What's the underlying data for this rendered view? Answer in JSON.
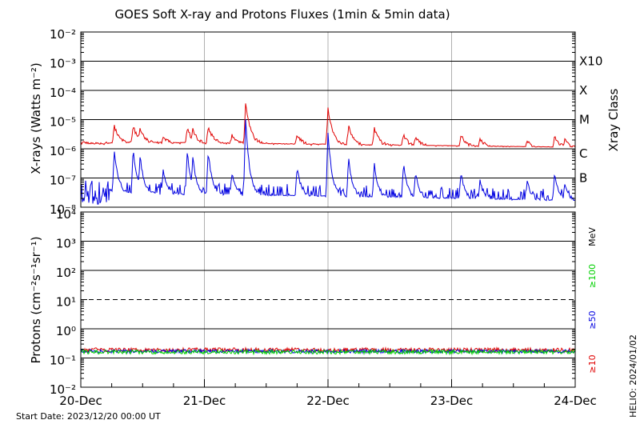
{
  "chart_data": [
    {
      "type": "line",
      "title": "GOES Soft X-ray and Protons Fluxes   (1min & 5min data)",
      "ylabel": "X-rays (Watts m⁻²)",
      "y_scale": "log",
      "ylim": [
        1e-08,
        0.01
      ],
      "y_ticks": [
        {
          "value": 1e-08,
          "label": "10⁻⁸"
        },
        {
          "value": 1e-07,
          "label": "10⁻⁷"
        },
        {
          "value": 1e-06,
          "label": "10⁻⁶"
        },
        {
          "value": 1e-05,
          "label": "10⁻⁵"
        },
        {
          "value": 0.0001,
          "label": "10⁻⁴"
        },
        {
          "value": 0.001,
          "label": "10⁻³"
        },
        {
          "value": 0.01,
          "label": "10⁻²"
        }
      ],
      "right_label": "Xray Class",
      "classes": [
        {
          "label": "B",
          "value": 1e-07
        },
        {
          "label": "C",
          "value": 1e-06
        },
        {
          "label": "M",
          "value": 1e-05
        },
        {
          "label": "X",
          "value": 0.0001
        },
        {
          "label": "X10",
          "value": 0.001
        }
      ],
      "xlim": [
        "2023-12-20",
        "2023-12-24"
      ],
      "grid": true,
      "series": [
        {
          "color": "#e00000",
          "baseline": 1.6e-06,
          "end_baseline": 1e-06,
          "noise": 0.18,
          "peaks": [
            {
              "x": "2023-12-20 06:30",
              "y": 6e-06
            },
            {
              "x": "2023-12-20 10:10",
              "y": 6e-06
            },
            {
              "x": "2023-12-20 11:30",
              "y": 5e-06
            },
            {
              "x": "2023-12-20 16:00",
              "y": 2.5e-06
            },
            {
              "x": "2023-12-20 20:40",
              "y": 5e-06
            },
            {
              "x": "2023-12-20 21:45",
              "y": 4.5e-06
            },
            {
              "x": "2023-12-21 00:45",
              "y": 6e-06
            },
            {
              "x": "2023-12-21 05:20",
              "y": 3e-06
            },
            {
              "x": "2023-12-21 08:00",
              "y": 3.5e-05
            },
            {
              "x": "2023-12-21 18:00",
              "y": 3e-06
            },
            {
              "x": "2023-12-22 00:00",
              "y": 2.5e-05
            },
            {
              "x": "2023-12-22 04:00",
              "y": 6e-06
            },
            {
              "x": "2023-12-22 09:00",
              "y": 5e-06
            },
            {
              "x": "2023-12-22 14:40",
              "y": 3e-06
            },
            {
              "x": "2023-12-22 17:00",
              "y": 2.5e-06
            },
            {
              "x": "2023-12-23 01:50",
              "y": 3e-06
            },
            {
              "x": "2023-12-23 05:30",
              "y": 2.2e-06
            },
            {
              "x": "2023-12-23 14:40",
              "y": 1.8e-06
            },
            {
              "x": "2023-12-23 20:00",
              "y": 2.8e-06
            },
            {
              "x": "2023-12-23 22:00",
              "y": 2e-06
            }
          ]
        },
        {
          "color": "#0000e0",
          "baseline": 3e-08,
          "end_baseline": 1.5e-08,
          "noise": 0.55,
          "peaks": [
            {
              "x": "2023-12-20 06:30",
              "y": 1e-06
            },
            {
              "x": "2023-12-20 10:10",
              "y": 1e-06
            },
            {
              "x": "2023-12-20 11:30",
              "y": 6e-07
            },
            {
              "x": "2023-12-20 16:00",
              "y": 2e-07
            },
            {
              "x": "2023-12-20 20:40",
              "y": 8e-07
            },
            {
              "x": "2023-12-20 21:45",
              "y": 5e-07
            },
            {
              "x": "2023-12-21 00:45",
              "y": 8e-07
            },
            {
              "x": "2023-12-21 05:20",
              "y": 1.5e-07
            },
            {
              "x": "2023-12-21 08:00",
              "y": 1.1e-05
            },
            {
              "x": "2023-12-21 18:00",
              "y": 2.5e-07
            },
            {
              "x": "2023-12-22 00:00",
              "y": 4e-06
            },
            {
              "x": "2023-12-22 04:00",
              "y": 5e-07
            },
            {
              "x": "2023-12-22 09:00",
              "y": 3e-07
            },
            {
              "x": "2023-12-22 14:40",
              "y": 3e-07
            },
            {
              "x": "2023-12-22 17:00",
              "y": 1.5e-07
            },
            {
              "x": "2023-12-23 01:50",
              "y": 1.5e-07
            },
            {
              "x": "2023-12-23 05:30",
              "y": 8e-08
            },
            {
              "x": "2023-12-23 14:40",
              "y": 8e-08
            },
            {
              "x": "2023-12-23 20:00",
              "y": 1.5e-07
            },
            {
              "x": "2023-12-23 22:00",
              "y": 7e-08
            }
          ]
        }
      ]
    },
    {
      "type": "line",
      "ylabel": "Protons (cm⁻²s⁻¹sr⁻¹)",
      "y_scale": "log",
      "ylim": [
        0.01,
        10000
      ],
      "y_ticks": [
        {
          "value": 0.01,
          "label": "10⁻²"
        },
        {
          "value": 0.1,
          "label": "10⁻¹"
        },
        {
          "value": 1,
          "label": "10⁰"
        },
        {
          "value": 10,
          "label": "10¹"
        },
        {
          "value": 100,
          "label": "10²"
        },
        {
          "value": 1000,
          "label": "10³"
        },
        {
          "value": 10000,
          "label": "10⁴"
        }
      ],
      "threshold": {
        "value": 10,
        "style": "dashed"
      },
      "unit_label": "MeV",
      "xlim": [
        "2023-12-20",
        "2023-12-24"
      ],
      "x_ticks": [
        "20-Dec",
        "21-Dec",
        "22-Dec",
        "23-Dec",
        "24-Dec"
      ],
      "grid": true,
      "series": [
        {
          "name": "≥10",
          "color": "#e00000",
          "baseline": 0.19,
          "noise": 0.07
        },
        {
          "name": "≥50",
          "color": "#0000e0",
          "baseline": 0.17,
          "noise": 0.06
        },
        {
          "name": "≥100",
          "color": "#00d000",
          "baseline": 0.16,
          "noise": 0.07
        }
      ]
    }
  ],
  "footer": {
    "start_date": "Start Date: 2023/12/20 00:00 UT",
    "stamp": "HELIO: 2024/01/02"
  }
}
